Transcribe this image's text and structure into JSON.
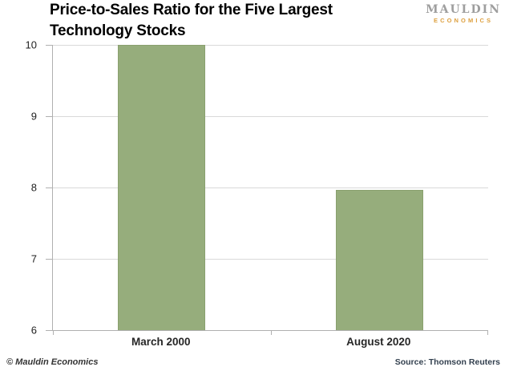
{
  "title_lines": [
    "Price-to-Sales Ratio for the Five Largest",
    "Technology Stocks"
  ],
  "logo": {
    "name": "MAULDIN",
    "tagline": "ECONOMICS"
  },
  "footer": {
    "copyright": "© Mauldin Economics",
    "source": "Source: Thomson Reuters"
  },
  "colors": {
    "bar": "#96ad7c",
    "bar_border": "#8aa06f",
    "gridline": "#d9d9d9",
    "axis": "#b0b0b0",
    "logo_gray": "#9e9e9e",
    "logo_gold": "#dd9f3d"
  },
  "chart_data": {
    "type": "bar",
    "categories": [
      "March 2000",
      "August 2020"
    ],
    "values": [
      10.0,
      7.97
    ],
    "title": "Price-to-Sales Ratio for the Five Largest Technology Stocks",
    "xlabel": "",
    "ylabel": "",
    "ylim": [
      6,
      10
    ],
    "yticks": [
      6,
      7,
      8,
      9,
      10
    ],
    "grid": true,
    "legend": false,
    "source": "Thomson Reuters"
  }
}
